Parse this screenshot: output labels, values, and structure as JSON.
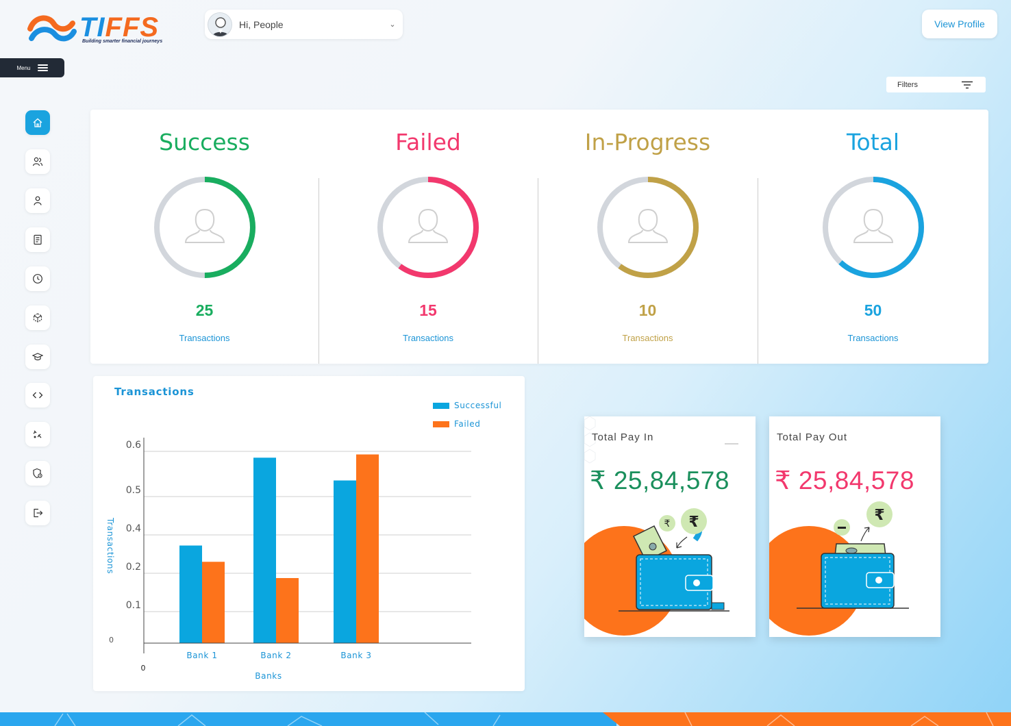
{
  "brand": {
    "name_blue": "TI",
    "name_orange": "FFS",
    "tagline": "Building smarter financial journeys"
  },
  "header": {
    "greeting": "Hi, People",
    "view_profile": "View Profile"
  },
  "menu": {
    "label": "Menu"
  },
  "sidebar": {
    "items": [
      {
        "icon": "home-icon",
        "active": true
      },
      {
        "icon": "users-icon"
      },
      {
        "icon": "user-icon"
      },
      {
        "icon": "receipt-icon"
      },
      {
        "icon": "clock-icon"
      },
      {
        "icon": "cube-icon"
      },
      {
        "icon": "graduation-cap-icon"
      },
      {
        "icon": "code-icon"
      },
      {
        "icon": "satellite-icon"
      },
      {
        "icon": "shield-icon"
      },
      {
        "icon": "logout-icon"
      }
    ]
  },
  "filters": {
    "label": "Filters"
  },
  "stats": [
    {
      "title": "Success",
      "value": "25",
      "label": "Transactions",
      "color": "#19ad5f",
      "fraction": 0.5
    },
    {
      "title": "Failed",
      "value": "15",
      "label": "Transactions",
      "color": "#f2386d",
      "fraction": 0.6
    },
    {
      "title": "In-Progress",
      "value": "10",
      "label": "Transactions",
      "color": "#c0a147",
      "fraction": 0.6
    },
    {
      "title": "Total",
      "value": "50",
      "label": "Transactions",
      "color": "#1aa3df",
      "fraction": 0.62
    }
  ],
  "chart_data": {
    "type": "bar",
    "title": "Transactions",
    "categories": [
      "Bank 1",
      "Bank 2",
      "Bank 3"
    ],
    "series": [
      {
        "name": "Successful",
        "values": [
          0.3,
          0.57,
          0.5
        ],
        "color": "#0aa6df"
      },
      {
        "name": "Failed",
        "values": [
          0.25,
          0.2,
          0.58
        ],
        "color": "#fd731b"
      }
    ],
    "xlabel": "Banks",
    "ylabel": "Transactions",
    "y_ticks": [
      "0.6",
      "0.5",
      "0.4",
      "0.2",
      "0.1",
      "0"
    ],
    "x_origin_label": "0",
    "legend": "top-right"
  },
  "pay_in": {
    "title": "Total Pay In",
    "amount": "₹ 25,84,578",
    "color": "#1a8f5c"
  },
  "pay_out": {
    "title": "Total Pay Out",
    "amount": "₹ 25,84,578",
    "color": "#f2386d"
  }
}
